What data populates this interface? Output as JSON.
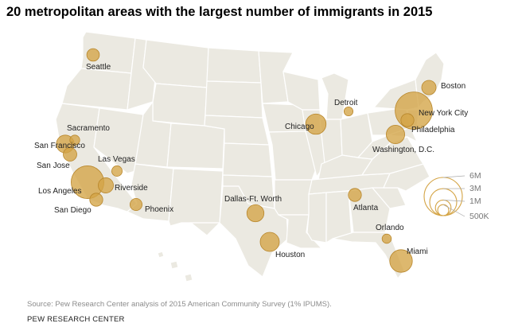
{
  "title": "20 metropolitan areas with the largest number of immigrants in 2015",
  "source": "Source: Pew Research Center analysis of 2015 American Community Survey (1% IPUMS).",
  "credit": "PEW RESEARCH CENTER",
  "colors": {
    "land": "#ebe9e1",
    "border": "#ffffff",
    "bubble": "#d4a445",
    "bubble_stroke": "#b8862a",
    "text": "#222222",
    "muted": "#8c8c8c"
  },
  "chart_data": {
    "type": "proportional-symbol-map",
    "title": "20 metropolitan areas with the largest number of immigrants in 2015",
    "unit": "immigrants",
    "legend": [
      {
        "label": "6M",
        "value": 6000000
      },
      {
        "label": "3M",
        "value": 3000000
      },
      {
        "label": "1M",
        "value": 1000000
      },
      {
        "label": "500K",
        "value": 500000
      }
    ],
    "cities": [
      {
        "name": "New York City",
        "value": 5700000
      },
      {
        "name": "Los Angeles",
        "value": 4400000
      },
      {
        "name": "Miami",
        "value": 2100000
      },
      {
        "name": "Chicago",
        "value": 1700000
      },
      {
        "name": "Houston",
        "value": 1500000
      },
      {
        "name": "Washington, D.C.",
        "value": 1400000
      },
      {
        "name": "San Francisco",
        "value": 1300000
      },
      {
        "name": "Dallas-Ft. Worth",
        "value": 1200000
      },
      {
        "name": "Riverside",
        "value": 950000
      },
      {
        "name": "Boston",
        "value": 850000
      },
      {
        "name": "San Jose",
        "value": 750000
      },
      {
        "name": "Philadelphia",
        "value": 700000
      },
      {
        "name": "Atlanta",
        "value": 700000
      },
      {
        "name": "San Diego",
        "value": 700000
      },
      {
        "name": "Seattle",
        "value": 650000
      },
      {
        "name": "Phoenix",
        "value": 600000
      },
      {
        "name": "Las Vegas",
        "value": 450000
      },
      {
        "name": "Sacramento",
        "value": 400000
      },
      {
        "name": "Orlando",
        "value": 350000
      },
      {
        "name": "Detroit",
        "value": 330000
      }
    ]
  }
}
